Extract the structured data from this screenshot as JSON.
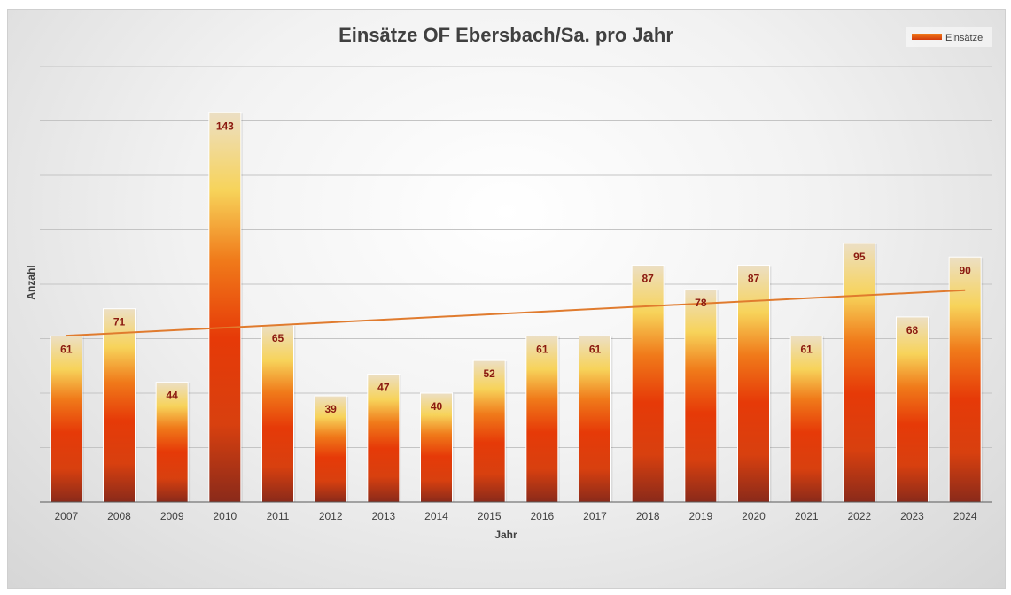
{
  "chart_data": {
    "type": "bar",
    "title": "Einsätze OF Ebersbach/Sa. pro Jahr",
    "xlabel": "Jahr",
    "ylabel": "Anzahl",
    "categories": [
      "2007",
      "2008",
      "2009",
      "2010",
      "2011",
      "2012",
      "2013",
      "2014",
      "2015",
      "2016",
      "2017",
      "2018",
      "2019",
      "2020",
      "2021",
      "2022",
      "2023",
      "2024"
    ],
    "series": [
      {
        "name": "Einsätze",
        "values": [
          61,
          71,
          44,
          143,
          65,
          39,
          47,
          40,
          52,
          61,
          61,
          87,
          78,
          87,
          61,
          95,
          68,
          90
        ]
      }
    ],
    "trendline": {
      "type": "linear",
      "color": "#e07b2e"
    },
    "ylim": [
      0,
      160
    ],
    "gridlines": true,
    "legend_position": "top-right",
    "colors": {
      "bar_top": "#f2e6c8",
      "bar_mid": "#e83a0a",
      "bar_bottom": "#8b2a18",
      "label": "#8b1a10"
    }
  }
}
